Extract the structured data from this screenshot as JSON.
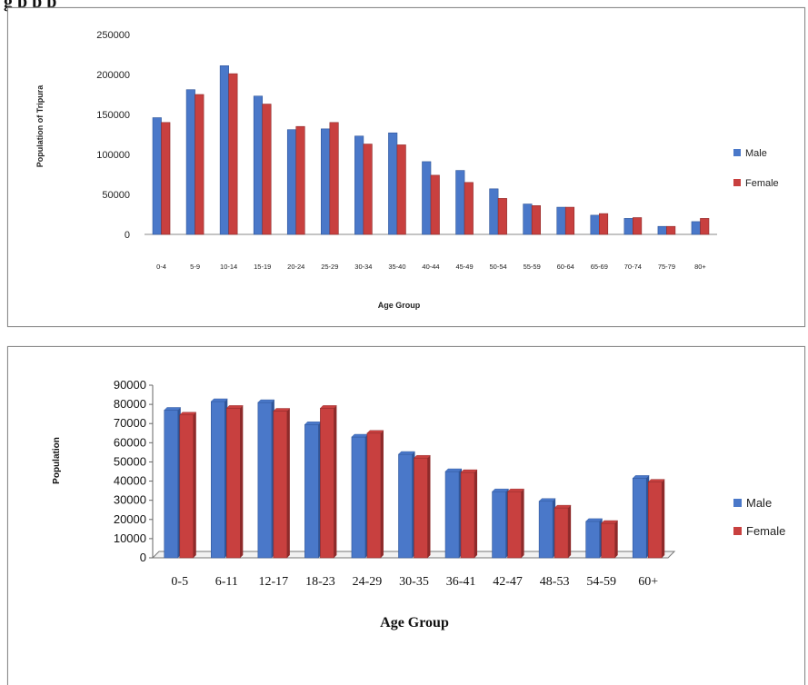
{
  "page": {
    "caption": "g           p p                             p"
  },
  "colors": {
    "male": "#4a78c9",
    "male_dark": "#2f5599",
    "female": "#c8403f",
    "female_dark": "#8e2a2a"
  },
  "chart_data": [
    {
      "type": "bar",
      "title": "",
      "xlabel": "Age Group",
      "ylabel": "Population of Tripura",
      "ylim": [
        0,
        250000
      ],
      "yticks": [
        "0",
        "50000",
        "100000",
        "150000",
        "200000",
        "250000"
      ],
      "ytick_values": [
        0,
        50000,
        100000,
        150000,
        200000,
        250000
      ],
      "grid": false,
      "legend_position": "right",
      "categories": [
        "0-4",
        "5-9",
        "10-14",
        "15-19",
        "20-24",
        "25-29",
        "30-34",
        "35-40",
        "40-44",
        "45-49",
        "50-54",
        "55-59",
        "60-64",
        "65-69",
        "70-74",
        "75-79",
        "80+"
      ],
      "series": [
        {
          "name": "Male",
          "values": [
            146000,
            181000,
            211000,
            173000,
            131000,
            132000,
            123000,
            127000,
            91000,
            80000,
            57000,
            38000,
            34000,
            24000,
            20000,
            10000,
            16000
          ]
        },
        {
          "name": "Female",
          "values": [
            140000,
            175000,
            201000,
            163000,
            135000,
            140000,
            113000,
            112000,
            74000,
            65000,
            45000,
            36000,
            34000,
            26000,
            21000,
            10000,
            20000
          ]
        }
      ]
    },
    {
      "type": "bar",
      "title": "",
      "xlabel": "Age Group",
      "ylabel": "Population",
      "ylim": [
        0,
        90000
      ],
      "yticks": [
        "0",
        "10000",
        "20000",
        "30000",
        "40000",
        "50000",
        "60000",
        "70000",
        "80000",
        "90000"
      ],
      "ytick_values": [
        0,
        10000,
        20000,
        30000,
        40000,
        50000,
        60000,
        70000,
        80000,
        90000
      ],
      "grid": false,
      "legend_position": "right",
      "categories": [
        "0-5",
        "6-11",
        "12-17",
        "18-23",
        "24-29",
        "30-35",
        "36-41",
        "42-47",
        "48-53",
        "54-59",
        "60+"
      ],
      "series": [
        {
          "name": "Male",
          "values": [
            77000,
            81500,
            81000,
            69500,
            63000,
            54000,
            45000,
            34500,
            29500,
            19000,
            41500
          ]
        },
        {
          "name": "Female",
          "values": [
            74500,
            78000,
            76500,
            78000,
            65000,
            52000,
            44500,
            34500,
            26000,
            18000,
            39500
          ]
        }
      ]
    }
  ]
}
